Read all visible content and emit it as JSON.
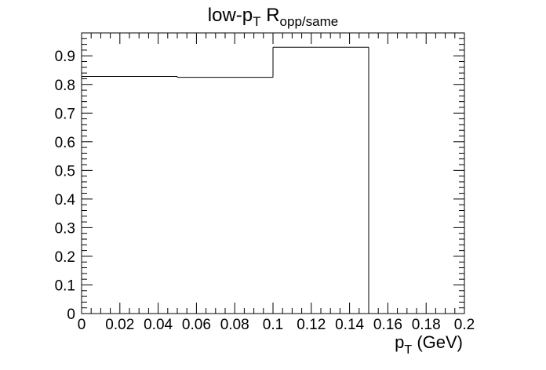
{
  "chart_data": {
    "type": "histogram",
    "title_main": "low-p",
    "title_main_sub": "T",
    "title_ratio": " R",
    "title_ratio_sub": "opp/same",
    "xlabel_main": "p",
    "xlabel_sub": "T",
    "xlabel_unit": " (GeV)",
    "xlim": [
      0,
      0.2
    ],
    "ylim": [
      0,
      0.98
    ],
    "x_ticks": [
      "0",
      "0.02",
      "0.04",
      "0.06",
      "0.08",
      "0.1",
      "0.12",
      "0.14",
      "0.16",
      "0.18",
      "0.2"
    ],
    "y_ticks": [
      "0",
      "0.1",
      "0.2",
      "0.3",
      "0.4",
      "0.5",
      "0.6",
      "0.7",
      "0.8",
      "0.9"
    ],
    "bins": [
      {
        "x0": 0.0,
        "x1": 0.05,
        "value": 0.828
      },
      {
        "x0": 0.05,
        "x1": 0.1,
        "value": 0.825
      },
      {
        "x0": 0.1,
        "x1": 0.15,
        "value": 0.93
      }
    ],
    "grid": false,
    "legend": "none"
  }
}
